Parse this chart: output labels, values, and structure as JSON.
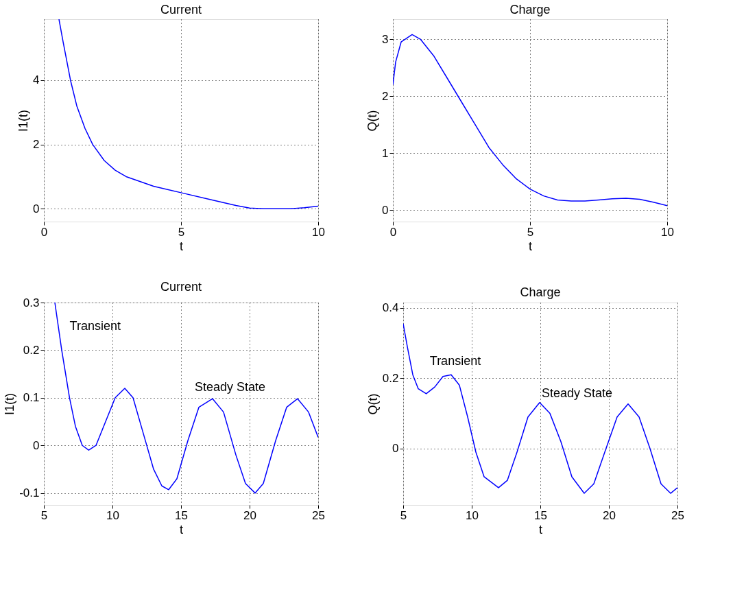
{
  "chart_data": [
    {
      "type": "line",
      "title": "Current",
      "xlabel": "t",
      "ylabel": "I1(t)",
      "xlim": [
        0,
        10
      ],
      "xticks": [
        0,
        5,
        10
      ],
      "ylim": [
        -0.4,
        5.9
      ],
      "yticks": [
        0,
        2,
        4
      ],
      "grid": true,
      "series": [
        {
          "color": "#0000ff",
          "x": [
            0.55,
            0.7,
            0.97,
            1.2,
            1.5,
            1.78,
            2.2,
            2.6,
            3,
            3.5,
            4,
            5,
            6,
            7,
            7.5,
            8,
            9,
            9.5,
            10
          ],
          "values": [
            5.9,
            5.2,
            4,
            3.2,
            2.5,
            2,
            1.5,
            1.2,
            1.0,
            0.85,
            0.7,
            0.5,
            0.3,
            0.1,
            0.02,
            0,
            0,
            0.03,
            0.08
          ]
        }
      ]
    },
    {
      "type": "line",
      "title": "Charge",
      "xlabel": "t",
      "ylabel": "Q(t)",
      "xlim": [
        0,
        10
      ],
      "xticks": [
        0,
        5,
        10
      ],
      "ylim": [
        -0.2,
        3.35
      ],
      "yticks": [
        0,
        1,
        2,
        3
      ],
      "grid": true,
      "series": [
        {
          "color": "#0000ff",
          "x": [
            0,
            0.1,
            0.3,
            0.7,
            1,
            1.5,
            2,
            2.5,
            3,
            3.5,
            4,
            4.5,
            5,
            5.5,
            6,
            6.5,
            7,
            7.5,
            8,
            8.5,
            9,
            9.5,
            10
          ],
          "values": [
            2.2,
            2.6,
            2.95,
            3.08,
            3.0,
            2.7,
            2.3,
            1.9,
            1.5,
            1.1,
            0.8,
            0.55,
            0.37,
            0.25,
            0.18,
            0.16,
            0.16,
            0.18,
            0.2,
            0.21,
            0.19,
            0.14,
            0.08
          ]
        }
      ]
    },
    {
      "type": "line",
      "title": "Current",
      "xlabel": "t",
      "ylabel": "I1(t)",
      "xlim": [
        5,
        25
      ],
      "xticks": [
        5,
        10,
        15,
        20,
        25
      ],
      "ylim": [
        -0.125,
        0.3
      ],
      "yticks": [
        -0.1,
        0,
        0.1,
        0.2,
        0.3
      ],
      "grid": true,
      "annotations": [
        "Transient",
        "Steady State"
      ],
      "series": [
        {
          "color": "#0000ff",
          "x": [
            5.8,
            6.3,
            6.87,
            7.3,
            7.8,
            8.27,
            8.8,
            9.5,
            10.2,
            10.9,
            11.5,
            12.2,
            13,
            13.6,
            14.1,
            14.7,
            15.5,
            16.3,
            17.3,
            18.1,
            19,
            19.7,
            20.4,
            21,
            21.9,
            22.7,
            23.5,
            24.3,
            25
          ],
          "values": [
            0.3,
            0.2,
            0.1,
            0.04,
            0.0,
            -0.01,
            0.0,
            0.05,
            0.1,
            0.12,
            0.1,
            0.03,
            -0.05,
            -0.085,
            -0.093,
            -0.07,
            0.01,
            0.08,
            0.098,
            0.07,
            -0.02,
            -0.08,
            -0.1,
            -0.08,
            0.01,
            0.08,
            0.098,
            0.07,
            0.017
          ]
        }
      ]
    },
    {
      "type": "line",
      "title": "Charge",
      "xlabel": "t",
      "ylabel": "Q(t)",
      "xlim": [
        5,
        25
      ],
      "xticks": [
        5,
        10,
        15,
        20,
        25
      ],
      "ylim": [
        -0.16,
        0.415
      ],
      "yticks": [
        0,
        0.2,
        0.4
      ],
      "grid": true,
      "annotations": [
        "Transient",
        "Steady State"
      ],
      "series": [
        {
          "color": "#0000ff",
          "x": [
            5,
            5.3,
            5.7,
            6.1,
            6.68,
            7.3,
            7.9,
            8.5,
            9.1,
            9.7,
            10.3,
            10.9,
            11.95,
            12.6,
            13.3,
            14.1,
            14.95,
            15.7,
            16.5,
            17.3,
            18.2,
            18.9,
            19.7,
            20.6,
            21.4,
            22.2,
            23.0,
            23.8,
            24.5,
            25
          ],
          "values": [
            0.355,
            0.29,
            0.21,
            0.17,
            0.156,
            0.175,
            0.205,
            0.21,
            0.18,
            0.09,
            -0.01,
            -0.08,
            -0.111,
            -0.09,
            -0.01,
            0.09,
            0.131,
            0.1,
            0.02,
            -0.08,
            -0.127,
            -0.1,
            -0.01,
            0.09,
            0.127,
            0.09,
            0.0,
            -0.1,
            -0.127,
            -0.111
          ]
        }
      ]
    }
  ]
}
